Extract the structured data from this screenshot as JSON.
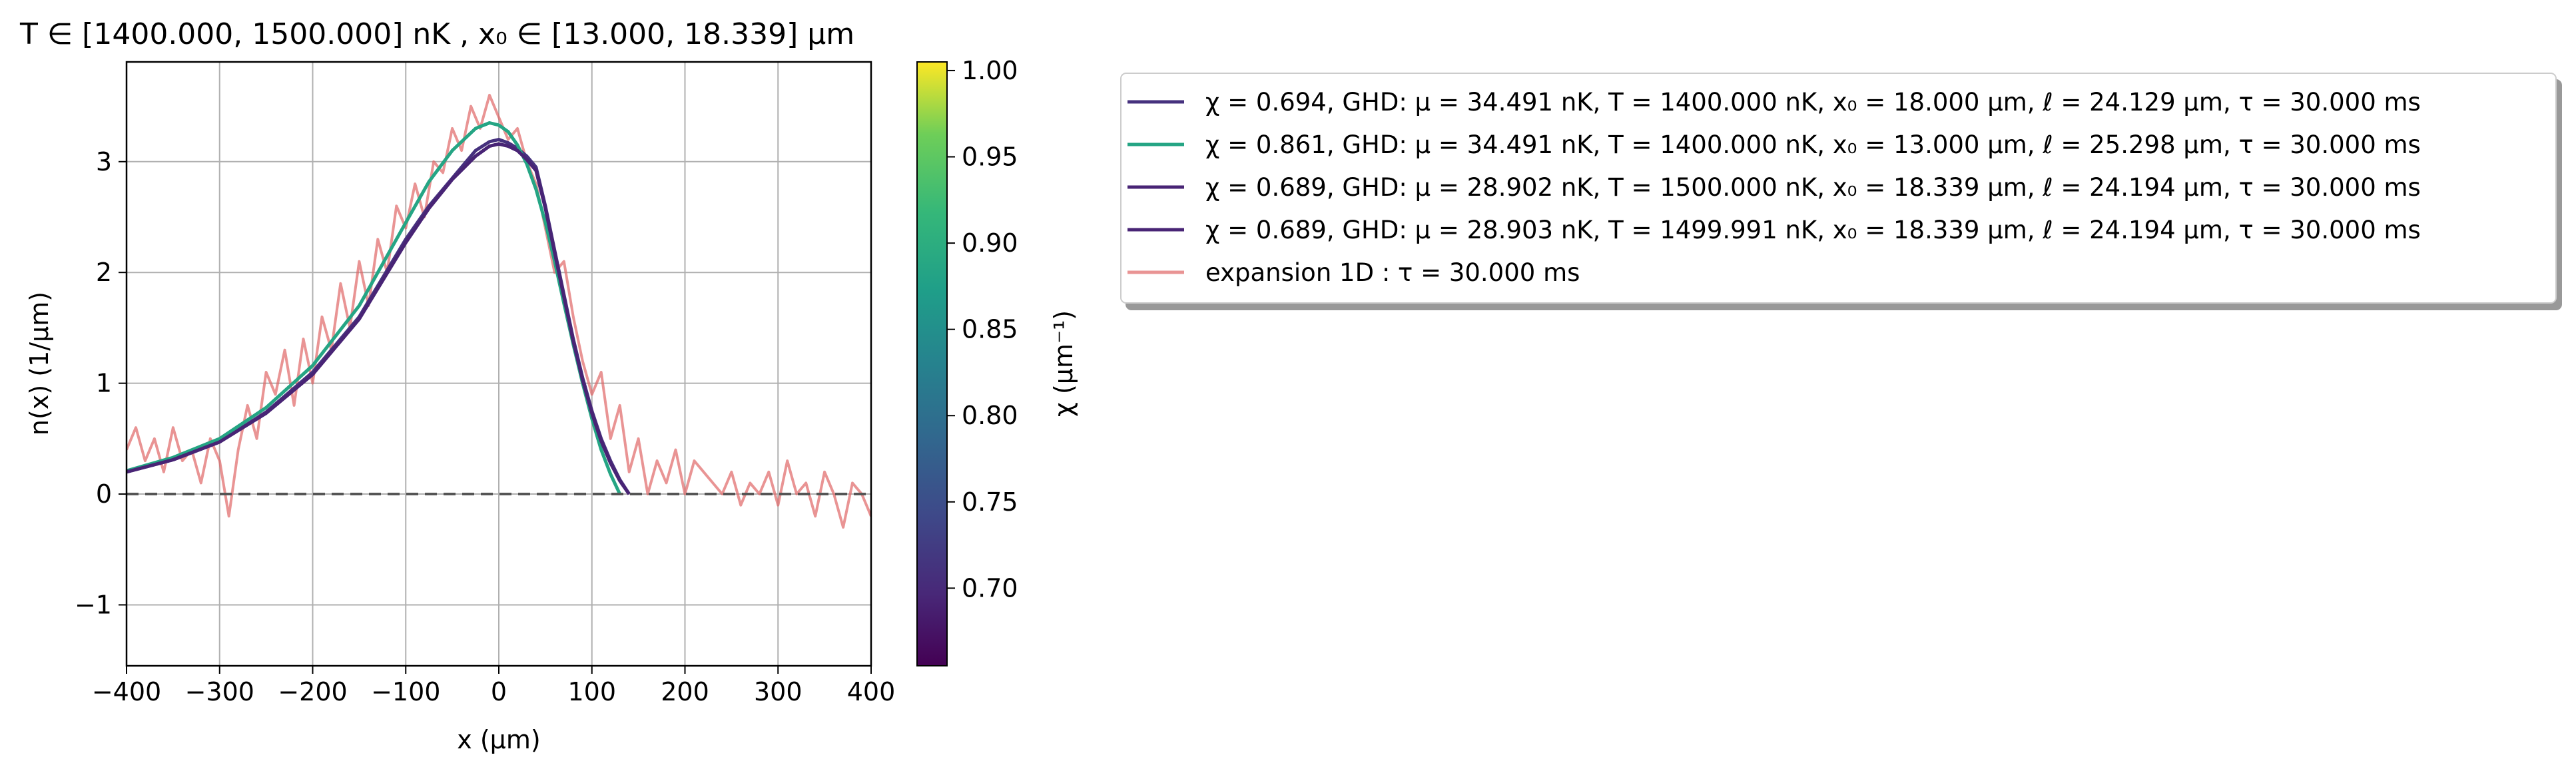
{
  "chart_data": {
    "type": "line",
    "title": "T ∈ [1400.000, 1500.000] nK ,    x₀ ∈ [13.000, 18.339] μm",
    "xlabel": "x   (μm)",
    "ylabel": "n(x)   (1/μm)",
    "xlim": [
      -400,
      400
    ],
    "ylim": [
      -1.55,
      3.9
    ],
    "xticks": [
      -400,
      -300,
      -200,
      -100,
      0,
      100,
      200,
      300,
      400
    ],
    "yticks": [
      -1,
      0,
      1,
      2,
      3
    ],
    "grid": true,
    "zero_line": {
      "y": 0,
      "style": "dashed",
      "color": "#555555"
    },
    "series": [
      {
        "name": "χ = 0.694, GHD: μ = 34.491 nK, T = 1400.000 nK, x₀ = 18.000 μm, ℓ = 24.129 μm, τ = 30.000 ms",
        "color": "#46317e",
        "x": [
          -400,
          -350,
          -300,
          -250,
          -200,
          -150,
          -100,
          -75,
          -50,
          -25,
          -10,
          0,
          10,
          20,
          30,
          40,
          50,
          60,
          70,
          80,
          90,
          100,
          110,
          120,
          130,
          140
        ],
        "y": [
          0.2,
          0.31,
          0.47,
          0.74,
          1.1,
          1.6,
          2.3,
          2.6,
          2.85,
          3.1,
          3.18,
          3.2,
          3.17,
          3.12,
          3.05,
          2.95,
          2.6,
          2.2,
          1.8,
          1.4,
          1.05,
          0.75,
          0.5,
          0.3,
          0.13,
          0.0
        ]
      },
      {
        "name": "χ = 0.861, GHD: μ = 34.491 nK, T = 1400.000 nK, x₀ = 13.000 μm, ℓ = 25.298 μm, τ = 30.000 ms",
        "color": "#25a584",
        "x": [
          -400,
          -350,
          -300,
          -250,
          -200,
          -150,
          -100,
          -75,
          -50,
          -25,
          -10,
          0,
          10,
          20,
          30,
          40,
          50,
          60,
          70,
          80,
          90,
          100,
          110,
          120,
          130
        ],
        "y": [
          0.21,
          0.33,
          0.5,
          0.78,
          1.16,
          1.7,
          2.45,
          2.82,
          3.1,
          3.3,
          3.35,
          3.33,
          3.27,
          3.15,
          2.98,
          2.75,
          2.45,
          2.1,
          1.72,
          1.35,
          1.0,
          0.68,
          0.4,
          0.18,
          0.0
        ]
      },
      {
        "name": "χ = 0.689, GHD: μ = 28.902 nK, T = 1500.000 nK, x₀ = 18.339 μm, ℓ = 24.194 μm, τ = 30.000 ms",
        "color": "#482475",
        "x": [
          -400,
          -350,
          -300,
          -250,
          -200,
          -150,
          -100,
          -75,
          -50,
          -25,
          -10,
          0,
          10,
          20,
          30,
          40,
          50,
          60,
          70,
          80,
          90,
          100,
          110,
          120,
          130,
          140
        ],
        "y": [
          0.2,
          0.31,
          0.47,
          0.73,
          1.08,
          1.58,
          2.27,
          2.58,
          2.84,
          3.05,
          3.14,
          3.16,
          3.14,
          3.1,
          3.02,
          2.92,
          2.58,
          2.18,
          1.78,
          1.38,
          1.03,
          0.73,
          0.48,
          0.28,
          0.12,
          0.0
        ]
      },
      {
        "name": "χ = 0.689, GHD: μ = 28.903 nK, T = 1499.991 nK, x₀ = 18.339 μm, ℓ = 24.194 μm, τ = 30.000 ms",
        "color": "#482475",
        "x": [
          -400,
          -350,
          -300,
          -250,
          -200,
          -150,
          -100,
          -75,
          -50,
          -25,
          -10,
          0,
          10,
          20,
          30,
          40,
          50,
          60,
          70,
          80,
          90,
          100,
          110,
          120,
          130,
          140
        ],
        "y": [
          0.2,
          0.31,
          0.47,
          0.73,
          1.08,
          1.58,
          2.27,
          2.58,
          2.84,
          3.05,
          3.14,
          3.16,
          3.14,
          3.1,
          3.02,
          2.92,
          2.58,
          2.18,
          1.78,
          1.38,
          1.03,
          0.73,
          0.48,
          0.28,
          0.12,
          0.0
        ]
      },
      {
        "name": "expansion 1D : τ = 30.000 ms",
        "color": "#e06666",
        "opacity": 0.7,
        "x": [
          -400,
          -390,
          -380,
          -370,
          -360,
          -350,
          -340,
          -330,
          -320,
          -310,
          -300,
          -290,
          -280,
          -270,
          -260,
          -250,
          -240,
          -230,
          -220,
          -210,
          -200,
          -190,
          -180,
          -170,
          -160,
          -150,
          -140,
          -130,
          -120,
          -110,
          -100,
          -90,
          -80,
          -70,
          -60,
          -50,
          -40,
          -30,
          -20,
          -10,
          0,
          10,
          20,
          30,
          40,
          50,
          60,
          70,
          80,
          90,
          100,
          110,
          120,
          130,
          140,
          150,
          160,
          170,
          180,
          190,
          200,
          210,
          220,
          230,
          240,
          250,
          260,
          270,
          280,
          290,
          300,
          310,
          320,
          330,
          340,
          350,
          360,
          370,
          380,
          390,
          400
        ],
        "y": [
          0.4,
          0.6,
          0.3,
          0.5,
          0.2,
          0.6,
          0.3,
          0.4,
          0.1,
          0.5,
          0.3,
          -0.2,
          0.4,
          0.8,
          0.5,
          1.1,
          0.9,
          1.3,
          0.8,
          1.4,
          1.0,
          1.6,
          1.3,
          1.9,
          1.5,
          2.1,
          1.7,
          2.3,
          2.0,
          2.6,
          2.4,
          2.8,
          2.5,
          3.0,
          2.9,
          3.3,
          3.1,
          3.5,
          3.3,
          3.6,
          3.4,
          3.2,
          3.3,
          3.0,
          2.8,
          2.4,
          2.0,
          2.1,
          1.6,
          1.2,
          0.9,
          1.1,
          0.5,
          0.8,
          0.2,
          0.5,
          0.0,
          0.3,
          0.1,
          0.4,
          0.0,
          0.3,
          0.2,
          0.1,
          0.0,
          0.2,
          -0.1,
          0.1,
          0.0,
          0.2,
          -0.1,
          0.3,
          0.0,
          0.1,
          -0.2,
          0.2,
          0.0,
          -0.3,
          0.1,
          0.0,
          -0.2
        ]
      }
    ],
    "colorbar": {
      "label": "χ (μm⁻¹)",
      "colormap": "viridis",
      "range": [
        0.655,
        1.005
      ],
      "ticks": [
        "0.70",
        "0.75",
        "0.80",
        "0.85",
        "0.90",
        "0.95",
        "1.00"
      ]
    },
    "legend": {
      "placement": "outside-right"
    }
  }
}
